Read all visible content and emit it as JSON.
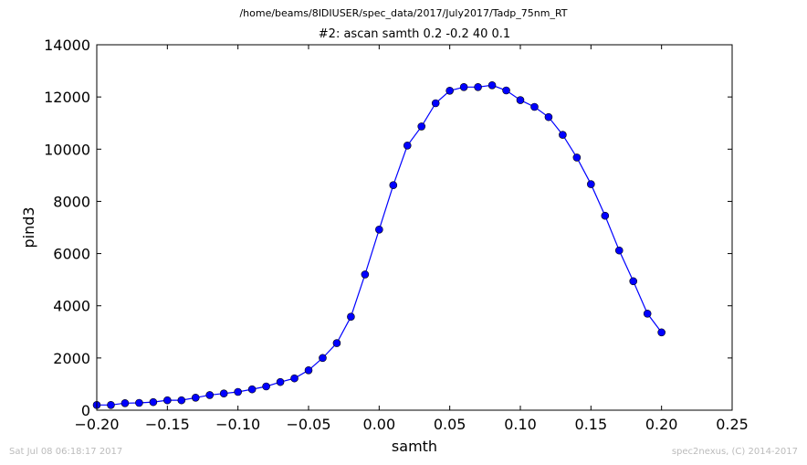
{
  "figure": {
    "suptitle": "/home/beams/8IDIUSER/spec_data/2017/July2017/Tadp_75nm_RT",
    "footer_left": "Sat Jul 08 06:18:17 2017",
    "footer_right": "spec2nexus, (C) 2014-2017"
  },
  "chart_data": {
    "type": "line",
    "title": "#2: ascan  samth 0.2 -0.2  40 0.1",
    "xlabel": "samth",
    "ylabel": "pind3",
    "xlim": [
      -0.2,
      0.25
    ],
    "ylim": [
      0,
      14000
    ],
    "xticks": [
      -0.2,
      -0.15,
      -0.1,
      -0.05,
      0.0,
      0.05,
      0.1,
      0.15,
      0.2,
      0.25
    ],
    "xtick_labels": [
      "−0.20",
      "−0.15",
      "−0.10",
      "−0.05",
      "0.00",
      "0.05",
      "0.10",
      "0.15",
      "0.20",
      "0.25"
    ],
    "yticks": [
      0,
      2000,
      4000,
      6000,
      8000,
      10000,
      12000,
      14000
    ],
    "ytick_labels": [
      "0",
      "2000",
      "4000",
      "6000",
      "8000",
      "10000",
      "12000",
      "14000"
    ],
    "grid": false,
    "series_color": "#0000ff",
    "marker": "circle",
    "series": [
      {
        "x": [
          -0.2,
          -0.19,
          -0.18,
          -0.17,
          -0.16,
          -0.15,
          -0.14,
          -0.13,
          -0.12,
          -0.11,
          -0.1,
          -0.09,
          -0.08,
          -0.07,
          -0.06,
          -0.05,
          -0.04,
          -0.03,
          -0.02,
          -0.01,
          0.0,
          0.01,
          0.02,
          0.03,
          0.04,
          0.05,
          0.06,
          0.07,
          0.08,
          0.09,
          0.1,
          0.11,
          0.12,
          0.13,
          0.14,
          0.15,
          0.16,
          0.17,
          0.18,
          0.19,
          0.2
        ],
        "y": [
          200,
          200,
          270,
          280,
          310,
          380,
          380,
          480,
          580,
          640,
          700,
          800,
          910,
          1080,
          1220,
          1530,
          2000,
          2570,
          3580,
          5200,
          6920,
          8620,
          10140,
          10870,
          11760,
          12240,
          12380,
          12380,
          12450,
          12250,
          11880,
          11620,
          11230,
          10550,
          9680,
          8660,
          7450,
          6120,
          4940,
          3700,
          2980
        ]
      }
    ]
  }
}
